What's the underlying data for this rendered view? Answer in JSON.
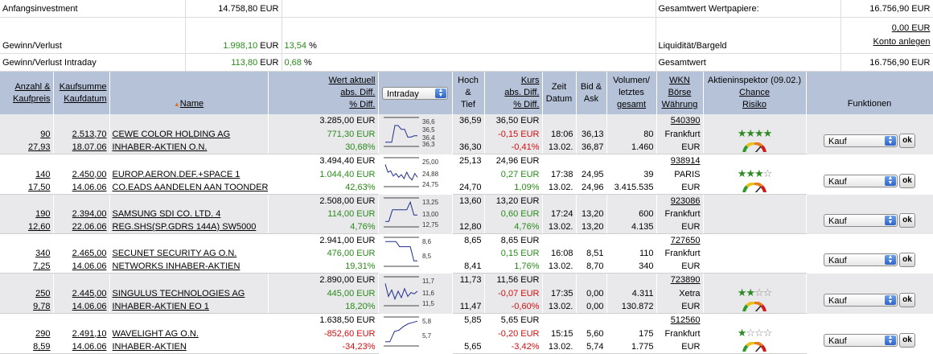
{
  "summary": {
    "investment_label": "Anfangsinvestment",
    "investment_value": "14.758,80 EUR",
    "gain_label": "Gewinn/Verlust",
    "gain_value": "1.998,10",
    "gain_cur": "EUR",
    "gain_pct": "13,54",
    "gain_pct_sign": "%",
    "intraday_label": "Gewinn/Verlust Intraday",
    "intraday_value": "113,80",
    "intraday_cur": "EUR",
    "intraday_pct": "0,68",
    "intraday_pct_sign": "%",
    "securities_label": "Gesamtwert Wertpapiere:",
    "securities_value": "16.756,90 EUR",
    "cash_label": "Liquidität/Bargeld",
    "cash_value": "0,00 EUR",
    "account_link": "Konto anlegen",
    "total_label": "Gesamtwert",
    "total_value": "16.756,90 EUR"
  },
  "header": {
    "col1_a": "Anzahl &",
    "col1_b": "Kaufpreis",
    "col2_a": "Kaufsumme",
    "col2_b": "Kaufdatum",
    "col3": "Name",
    "col4_a": "Wert aktuell",
    "col4_b": "abs. Diff.",
    "col4_c": "% Diff.",
    "chart_select": "Intraday",
    "col6_a": "Hoch",
    "col6_b": "&",
    "col6_c": "Tief",
    "col7_a": "Kurs",
    "col7_b": "abs. Diff.",
    "col7_c": "% Diff.",
    "col8_a": "Zeit",
    "col8_b": "Datum",
    "col9_a": "Bid &",
    "col9_b": "Ask",
    "col10_a": "Volumen/",
    "col10_b": "letztes",
    "col10_c": "gesamt",
    "col11_a": "WKN",
    "col11_b": "Börse",
    "col11_c": "Währung",
    "col12_a": "Aktieninspektor (09.02.)",
    "col12_b": "Chance",
    "col12_c": "Risiko",
    "col13": "Funktionen"
  },
  "action_ok": "ok",
  "stocks": [
    {
      "qty": "90",
      "price": "27,93",
      "sum": "2.513,70",
      "date": "18.07.06",
      "name1": "CEWE COLOR HOLDING AG",
      "name2": "INHABER-AKTIEN O.N.",
      "value": "3.285,00 EUR",
      "abs": "771,30 EUR",
      "pct": "30,68%",
      "sign": "pos",
      "high": "36,59",
      "low": "36,30",
      "kurs": "36,50 EUR",
      "kabs": "-0,15 EUR",
      "kpct": "-0,41%",
      "ksign": "neg",
      "time": "18:06",
      "kdate": "13.02.",
      "bid": "36,13",
      "ask": "36,87",
      "vol": "80",
      "volt": "1.460",
      "wkn": "540390",
      "exch": "Frankfurt",
      "cur": "EUR",
      "stars": 4,
      "action": "Kauf",
      "ticks": [
        "36,6",
        "36,5",
        "36,4",
        "36,3"
      ],
      "series": [
        0.1,
        0.1,
        0.1,
        0.75,
        0.75,
        0.6,
        0.6,
        0.3,
        0.3,
        0.35,
        0.35
      ]
    },
    {
      "qty": "140",
      "price": "17,50",
      "sum": "2.450,00",
      "date": "14.06.06",
      "name1": "EUROP.AERON.DEF.+SPACE 1",
      "name2": "CO.EADS AANDELEN AAN TOONDER EO",
      "value": "3.494,40 EUR",
      "abs": "1.044,40 EUR",
      "pct": "42,63%",
      "sign": "pos",
      "high": "25,13",
      "low": "24,70",
      "kurs": "24,96 EUR",
      "kabs": "0,27 EUR",
      "kpct": "1,09%",
      "ksign": "pos",
      "time": "17:38",
      "kdate": "13.02.",
      "bid": "24,95",
      "ask": "24,96",
      "vol": "39",
      "volt": "3.415.535",
      "wkn": "938914",
      "exch": "PARIS",
      "cur": "EUR",
      "stars": 3,
      "action": "Kauf",
      "ticks": [
        "25,00",
        "24,88",
        "24,75"
      ],
      "series": [
        0.8,
        0.5,
        0.55,
        0.35,
        0.45,
        0.3,
        0.4,
        0.25,
        0.5,
        0.3,
        0.2,
        0.45,
        0.3
      ]
    },
    {
      "qty": "190",
      "price": "12,60",
      "sum": "2.394,00",
      "date": "22.06.06",
      "name1": "SAMSUNG SDI CO. LTD. 4",
      "name2": "REG.SHS(SP.GDRS 144A) SW5000",
      "value": "2.508,00 EUR",
      "abs": "114,00 EUR",
      "pct": "4,76%",
      "sign": "pos",
      "high": "13,60",
      "low": "12,80",
      "kurs": "13,20 EUR",
      "kabs": "0,60 EUR",
      "kpct": "4,76%",
      "ksign": "pos",
      "time": "17:24",
      "kdate": "13.02.",
      "bid": "13,20",
      "ask": "13,20",
      "vol": "600",
      "volt": "4.135",
      "wkn": "923086",
      "exch": "Frankfurt",
      "cur": "EUR",
      "stars": 0,
      "action": "Kauf",
      "ticks": [
        "13,25",
        "13,00",
        "12,75"
      ],
      "series": [
        0.15,
        0.15,
        0.6,
        0.6,
        0.6,
        0.6,
        0.6,
        0.9,
        0.4,
        0.4
      ]
    },
    {
      "qty": "340",
      "price": "7,25",
      "sum": "2.465,00",
      "date": "14.06.06",
      "name1": "SECUNET SECURITY AG O.N.",
      "name2": "NETWORKS INHABER-AKTIEN",
      "value": "2.941,00 EUR",
      "abs": "476,00 EUR",
      "pct": "19,31%",
      "sign": "pos",
      "high": "8,65",
      "low": "8,41",
      "kurs": "8,65 EUR",
      "kabs": "0,15 EUR",
      "kpct": "1,76%",
      "ksign": "pos",
      "time": "16:08",
      "kdate": "13.02.",
      "bid": "8,51",
      "ask": "8,70",
      "vol": "110",
      "volt": "340",
      "wkn": "727650",
      "exch": "Frankfurt",
      "cur": "EUR",
      "stars": 0,
      "action": "Kauf",
      "ticks": [
        "8,6",
        "8,5"
      ],
      "series": [
        0.9,
        0.9,
        0.9,
        0.9,
        0.7,
        0.7,
        0.7,
        0.7,
        0.15,
        0.15
      ]
    },
    {
      "qty": "250",
      "price": "9,78",
      "sum": "2.445,00",
      "date": "14.06.06",
      "name1": "SINGULUS TECHNOLOGIES AG",
      "name2": "INHABER-AKTIEN EO 1",
      "value": "2.890,00 EUR",
      "abs": "445,00 EUR",
      "pct": "18,20%",
      "sign": "pos",
      "high": "11,73",
      "low": "11,47",
      "kurs": "11,56 EUR",
      "kabs": "-0,07 EUR",
      "kpct": "-0,60%",
      "ksign": "neg",
      "time": "17:35",
      "kdate": "13.02.",
      "bid": "0,00",
      "ask": "0,00",
      "vol": "4.311",
      "volt": "130.872",
      "wkn": "723890",
      "exch": "Xetra",
      "cur": "EUR",
      "stars": 2,
      "action": "Kauf",
      "ticks": [
        "11,7",
        "11,6",
        "11,5"
      ],
      "series": [
        0.8,
        0.3,
        0.55,
        0.2,
        0.5,
        0.25,
        0.6,
        0.3,
        0.45,
        0.4,
        0.5
      ]
    },
    {
      "qty": "290",
      "price": "8,59",
      "sum": "2.491,10",
      "date": "14.06.06",
      "name1": "WAVELIGHT AG O.N.",
      "name2": "INHABER-AKTIEN",
      "value": "1.638,50 EUR",
      "abs": "-852,60 EUR",
      "pct": "-34,23%",
      "sign": "neg",
      "high": "5,85",
      "low": "5,65",
      "kurs": "5,65 EUR",
      "kabs": "-0,20 EUR",
      "kpct": "-3,42%",
      "ksign": "neg",
      "time": "15:15",
      "kdate": "13.02.",
      "bid": "5,60",
      "ask": "5,74",
      "vol": "175",
      "volt": "1.775",
      "wkn": "512560",
      "exch": "Frankfurt",
      "cur": "EUR",
      "stars": 1,
      "action": "Kauf",
      "ticks": [
        "5,8",
        "5,7"
      ],
      "series": [
        0.1,
        0.1,
        0.5,
        0.55,
        0.7,
        0.8,
        0.85,
        0.9
      ]
    }
  ]
}
